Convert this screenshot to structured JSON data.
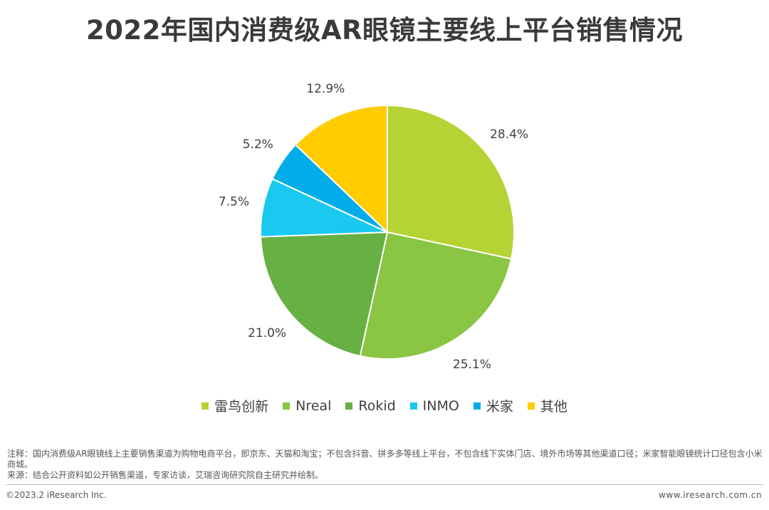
{
  "title": "2022年国内消费级AR眼镜主要线上平台销售情况",
  "chart_data": {
    "type": "pie",
    "title": "2022年国内消费级AR眼镜主要线上平台销售情况",
    "unit": "%",
    "start": "12 o'clock",
    "direction": "clockwise",
    "slices": [
      {
        "label": "雷鸟创新",
        "value": 28.4,
        "display": "28.4%",
        "color": "#b5d334"
      },
      {
        "label": "Nreal",
        "value": 25.1,
        "display": "25.1%",
        "color": "#8ac543"
      },
      {
        "label": "Rokid",
        "value": 21.0,
        "display": "21.0%",
        "color": "#67b043"
      },
      {
        "label": "INMO",
        "value": 7.5,
        "display": "7.5%",
        "color": "#19c9ef"
      },
      {
        "label": "米家",
        "value": 5.2,
        "display": "5.2%",
        "color": "#00ade8"
      },
      {
        "label": "其他",
        "value": 12.9,
        "display": "12.9%",
        "color": "#ffcc00"
      }
    ],
    "legend_position": "bottom"
  },
  "note": "注释：国内消费级AR眼镜线上主要销售渠道为购物电商平台，即京东、天猫和淘宝；不包含抖音、拼多多等线上平台，不包含线下实体门店、境外市场等其他渠道口径；米家智能眼镜统计口径包含小米商城。",
  "source": "来源：结合公开资料如公开销售渠道，专家访谈，艾瑞咨询研究院自主研究并绘制。",
  "footer": {
    "copyright": "©2023.2 iResearch Inc.",
    "website": "www.iresearch.com.cn"
  }
}
